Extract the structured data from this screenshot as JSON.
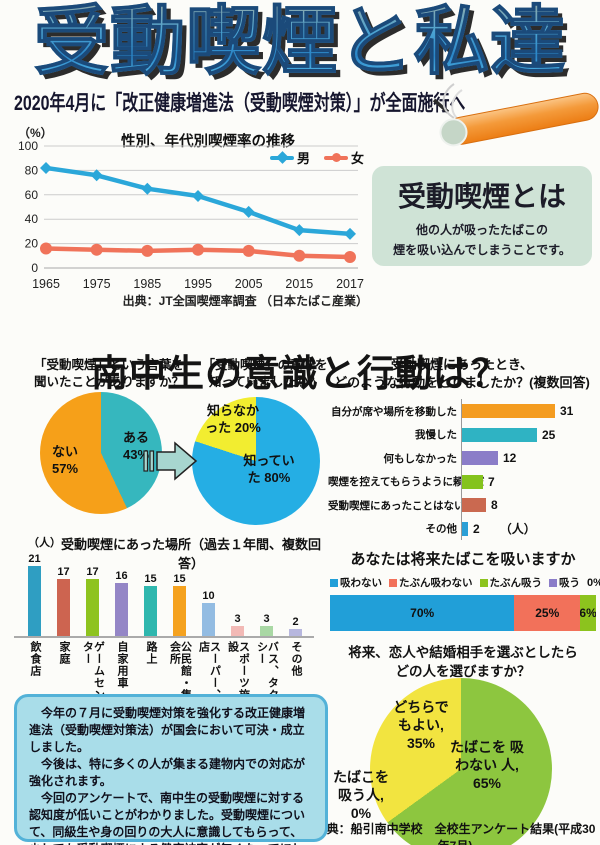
{
  "poster": {
    "title": "受動喫煙と私達",
    "subtitle": "2020年4月に「改正健康増進法（受動喫煙対策）」が全面施行へ",
    "section_heading": "南中生の意識と行動は？",
    "definition_box": {
      "title": "受動喫煙とは",
      "body": "他の人が吸ったたばこの\n煙を吸い込んでしまうことです。"
    },
    "summary_box": {
      "paragraphs": [
        "　今年の７月に受動喫煙対策を強化する改正健康増進法（受動喫煙対策法）が国会において可決・成立しました。",
        "　今後は、特に多くの人が集まる建物内での対応が強化されます。",
        "　今回のアンケートで、南中生の受動喫煙に対する認知度が低いことがわかりました。受動喫煙について、同級生や身の回りの大人に意識してもらって、少しでも受動喫煙による健康被害が無くなってほしいと思います。"
      ]
    },
    "colors": {
      "title_gradient_top": "#93aaa8",
      "title_gradient_bottom": "#5cc2ec",
      "title_outline": "#1b4a7a",
      "subtitle_color": "#16162e",
      "definition_box_bg": "#cfe3d6",
      "summary_box_bg": "#a9dde9",
      "summary_box_border": "#53b2d8",
      "arrow_fill": "#a7d6cf"
    }
  },
  "chart_data": [
    {
      "type": "line",
      "title": "性別、年代別喫煙率の推移",
      "y_unit": "（%）",
      "x": [
        "1965",
        "1975",
        "1985",
        "1995",
        "2005",
        "2015",
        "2017"
      ],
      "yticks": [
        0,
        20,
        40,
        60,
        80,
        100
      ],
      "ylim": [
        0,
        100
      ],
      "grid": true,
      "legend_position": "top-right",
      "series": [
        {
          "name": "男",
          "marker": "diamond",
          "color": "#2ba7d9",
          "values": [
            82,
            76,
            65,
            59,
            46,
            31,
            28
          ]
        },
        {
          "name": "女",
          "marker": "circle",
          "color": "#f0735a",
          "values": [
            16,
            15,
            14,
            15,
            14,
            10,
            9
          ]
        }
      ],
      "source": "出典：JT全国喫煙率調査 （日本たばこ産業）"
    },
    {
      "type": "pie",
      "title": "「受動喫煙」という言葉を\n聞いたことがありますか？",
      "slices": [
        {
          "label": "ある",
          "pct": 43,
          "color": "#36b7be",
          "display": "ある 43%"
        },
        {
          "label": "ない",
          "pct": 57,
          "color": "#f6a019",
          "display": "ない 57%"
        }
      ]
    },
    {
      "type": "pie",
      "title": "「受動喫煙」の意味を\n知っていましたか？",
      "slices": [
        {
          "label": "知っていた",
          "pct": 80,
          "color": "#25aee4",
          "display": "知っていた 80%"
        },
        {
          "label": "知らなかった",
          "pct": 20,
          "color": "#f2ed30",
          "display": "知らなかった 20%"
        }
      ]
    },
    {
      "type": "bar",
      "orientation": "horizontal",
      "title": "受動喫煙にあったとき、\nどのような行動をとりましたか？(複数回答)",
      "unit": "（人）",
      "max": 31,
      "items": [
        {
          "label": "自分が席や場所を移動した",
          "value": 31,
          "color": "#f49c20"
        },
        {
          "label": "我慢した",
          "value": 25,
          "color": "#2fb3c3"
        },
        {
          "label": "何もしなかった",
          "value": 12,
          "color": "#8b7dc8"
        },
        {
          "label": "喫煙を控えてもらうように頼んだ",
          "value": 7,
          "color": "#84c31d"
        },
        {
          "label": "受動喫煙にあったことはない",
          "value": 8,
          "color": "#ca6950"
        },
        {
          "label": "その他",
          "value": 2,
          "color": "#2b9fd6"
        }
      ]
    },
    {
      "type": "bar",
      "orientation": "vertical",
      "title": "受動喫煙にあった場所（過去１年間、複数回答）",
      "unit": "（人）",
      "max": 21,
      "items": [
        {
          "label": "飲食店",
          "value": 21,
          "color": "#2f9ec2"
        },
        {
          "label": "家庭",
          "value": 17,
          "color": "#cd6450"
        },
        {
          "label": "ゲームセンター",
          "value": 17,
          "color": "#8ec31f"
        },
        {
          "label": "自家用車",
          "value": 16,
          "color": "#9486c6"
        },
        {
          "label": "路上",
          "value": 15,
          "color": "#2fb7ae"
        },
        {
          "label": "公民館・集会所",
          "value": 15,
          "color": "#f5a21f"
        },
        {
          "label": "スーパー、店",
          "value": 10,
          "color": "#93bce2"
        },
        {
          "label": "スポーツ施設",
          "value": 3,
          "color": "#f2b9b5"
        },
        {
          "label": "バス、タクシー",
          "value": 3,
          "color": "#a9d8a4"
        },
        {
          "label": "その他",
          "value": 2,
          "color": "#b7b7de"
        }
      ]
    },
    {
      "type": "bar-stacked",
      "title": "あなたは将来たばこを吸いますか",
      "legend_extra": "0%",
      "segments": [
        {
          "label": "吸わない",
          "pct": 70,
          "color": "#219fd8"
        },
        {
          "label": "たぶん吸わない",
          "pct": 25,
          "color": "#f2715a"
        },
        {
          "label": "たぶん吸う",
          "pct": 6,
          "color": "#8cc31e"
        },
        {
          "label": "吸う",
          "pct": 0,
          "color": "#8b7dc8"
        }
      ]
    },
    {
      "type": "pie",
      "title": "将来、恋人や結婚相手を選ぶとしたら\nどの人を選びますか？",
      "slices": [
        {
          "label": "たばこを吸わない人",
          "pct": 65,
          "color": "#8dc63f",
          "display": "たばこを 吸わない 人, 65%"
        },
        {
          "label": "どちらでもよい",
          "pct": 35,
          "color": "#f2e440",
          "display": "どちらで もよい, 35%"
        },
        {
          "label": "たばこを吸う人",
          "pct": 0,
          "color": "#8dc63f",
          "display": "たばこを 吸う人, 0%"
        }
      ],
      "source": "出典：船引南中学校　全校生アンケート結果(平成30年7月)"
    }
  ]
}
